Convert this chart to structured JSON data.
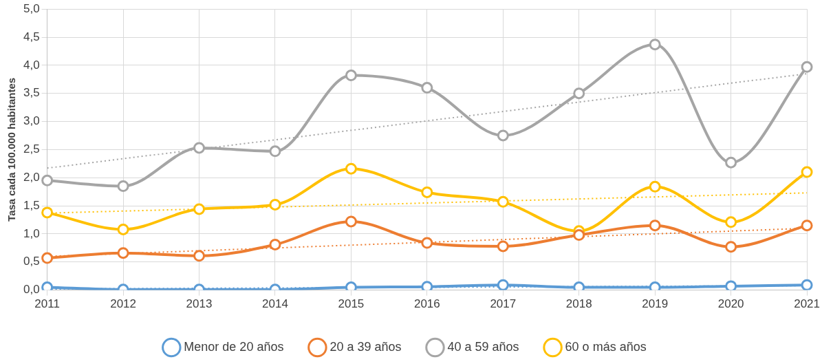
{
  "chart_data": {
    "type": "line",
    "ylabel": "Tasa cada 100.000 habitantes",
    "categories": [
      "2011",
      "2012",
      "2013",
      "2014",
      "2015",
      "2016",
      "2017",
      "2018",
      "2019",
      "2020",
      "2021"
    ],
    "series": [
      {
        "name": "Menor de 20 años",
        "color": "#5b9bd5",
        "values": [
          0.05,
          0.01,
          0.01,
          0.01,
          0.05,
          0.06,
          0.09,
          0.05,
          0.05,
          0.07,
          0.09
        ]
      },
      {
        "name": "20 a 39 años",
        "color": "#ed7d31",
        "values": [
          0.57,
          0.66,
          0.61,
          0.81,
          1.22,
          0.84,
          0.78,
          0.98,
          1.15,
          0.77,
          1.15
        ]
      },
      {
        "name": "40 a 59 años",
        "color": "#a5a5a5",
        "values": [
          1.95,
          1.85,
          2.53,
          2.47,
          3.82,
          3.6,
          2.75,
          3.5,
          4.37,
          2.27,
          3.97
        ]
      },
      {
        "name": "60 o más años",
        "color": "#ffc000",
        "values": [
          1.38,
          1.08,
          1.44,
          1.52,
          2.16,
          1.74,
          1.57,
          1.05,
          1.84,
          1.21,
          2.1
        ]
      },
      {
        "type": "line",
        "color": "#5b9bd5",
        "line_style": "dotted",
        "marker": "none",
        "values": [
          0.02,
          null,
          null,
          null,
          null,
          null,
          null,
          null,
          null,
          null,
          0.08
        ]
      },
      {
        "type": "line",
        "color": "#ed7d31",
        "line_style": "dotted",
        "marker": "none",
        "values": [
          0.6,
          null,
          null,
          null,
          null,
          null,
          null,
          null,
          null,
          null,
          1.1
        ]
      },
      {
        "type": "line",
        "color": "#a5a5a5",
        "line_style": "dotted",
        "marker": "none",
        "values": [
          2.17,
          null,
          null,
          null,
          null,
          null,
          null,
          null,
          null,
          null,
          3.85
        ]
      },
      {
        "type": "line",
        "color": "#ffc000",
        "line_style": "dotted",
        "marker": "none",
        "values": [
          1.37,
          null,
          null,
          null,
          null,
          null,
          null,
          null,
          null,
          null,
          1.73
        ]
      }
    ],
    "ylim": [
      0,
      5
    ],
    "yticks": [
      {
        "value": 0,
        "label": "0,0"
      },
      {
        "value": 0.5,
        "label": "0,5"
      },
      {
        "value": 1,
        "label": "1,0"
      },
      {
        "value": 1.5,
        "label": "1,5"
      },
      {
        "value": 2,
        "label": "2,0"
      },
      {
        "value": 2.5,
        "label": "2,5"
      },
      {
        "value": 3,
        "label": "3,0"
      },
      {
        "value": 3.5,
        "label": "3,5"
      },
      {
        "value": 4,
        "label": "4,0"
      },
      {
        "value": 4.5,
        "label": "4,5"
      },
      {
        "value": 5,
        "label": "5,0"
      }
    ],
    "grid": true,
    "legend": "bottom",
    "marker": "circle",
    "line_style": "solid"
  }
}
